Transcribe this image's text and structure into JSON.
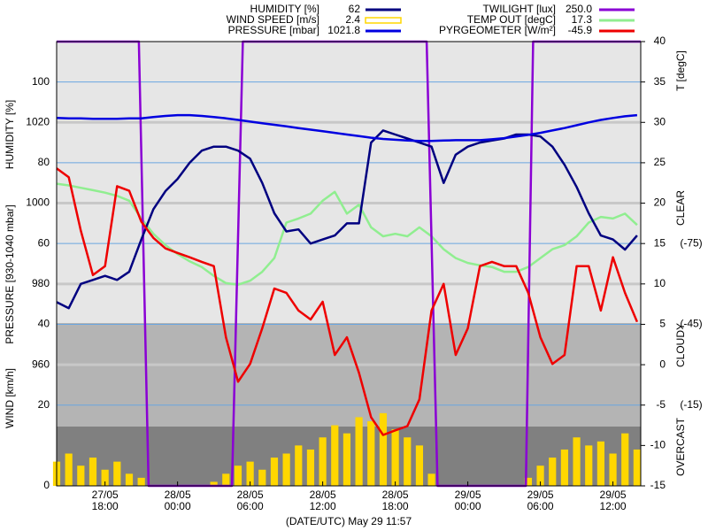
{
  "chart_data": {
    "type": "line",
    "xlabel": "(DATE/UTC) May 29 11:57",
    "ylabel": "HUMIDITY [%]",
    "y3label": "PRESSURE [930-1040 mbar]",
    "wind_label": "WIND [km/h]",
    "y2label": "T [degC]",
    "sky_labels": [
      "CLEAR",
      "CLOUDY",
      "OVERCAST"
    ],
    "xlim": [
      14,
      62.3
    ],
    "xticks": [
      {
        "value": 18,
        "label": "18:00"
      },
      {
        "value": 24,
        "label": "00:00"
      },
      {
        "value": 30,
        "label": "06:00"
      },
      {
        "value": 36,
        "label": "12:00"
      },
      {
        "value": 42,
        "label": "18:00"
      },
      {
        "value": 48,
        "label": "00:00"
      },
      {
        "value": 54,
        "label": "06:00"
      },
      {
        "value": 60,
        "label": "12:00"
      }
    ],
    "xtick_dates": [
      "27/05",
      "28/05",
      "28/05",
      "28/05",
      "28/05",
      "29/05",
      "29/05",
      "29/05"
    ],
    "ylim": [
      0,
      110
    ],
    "yticks": [
      0,
      20,
      40,
      60,
      80,
      100
    ],
    "y3lim": [
      930,
      1040
    ],
    "y3ticks": [
      960,
      980,
      1000,
      1020
    ],
    "y2lim": [
      -15,
      40
    ],
    "y2ticks": [
      -15,
      -10,
      -5,
      0,
      5,
      10,
      15,
      20,
      25,
      30,
      35,
      40
    ],
    "y4lim": [
      15,
      -150
    ],
    "y4ticks": [
      {
        "value": -75,
        "label": "(-75)"
      },
      {
        "value": -45,
        "label": "(-45)"
      },
      {
        "value": -15,
        "label": "(-15)"
      }
    ],
    "y5lim": [
      0,
      250
    ],
    "grid": true,
    "x": [
      14,
      15,
      16,
      17,
      18,
      19,
      20,
      21,
      22,
      23,
      24,
      25,
      26,
      27,
      28,
      29,
      30,
      31,
      32,
      33,
      34,
      35,
      36,
      37,
      38,
      39,
      40,
      41,
      42,
      43,
      44,
      45,
      46,
      47,
      48,
      49,
      50,
      51,
      52,
      53,
      54,
      55,
      56,
      57,
      58,
      59,
      60,
      61,
      62
    ],
    "series": [
      {
        "name": "HUMIDITY [%]",
        "current": "62",
        "color": "#000080",
        "axis": "y",
        "kind": "line",
        "values": [
          45.5,
          44,
          50,
          51,
          52,
          51,
          53,
          61,
          68.5,
          73,
          76,
          80,
          83,
          84,
          84,
          83,
          81,
          75,
          67.5,
          63,
          63.5,
          60,
          61,
          62,
          65,
          65,
          85,
          88,
          87,
          86,
          85,
          84,
          75,
          82,
          84,
          85,
          85.5,
          86,
          87,
          87,
          86.5,
          84,
          79.5,
          74,
          67.5,
          62,
          61,
          58.5,
          62
        ]
      },
      {
        "name": "WIND SPEED [m/s]",
        "current": "2.4",
        "color": "#ffd700",
        "axis": "y",
        "kind": "bar",
        "values": [
          6,
          8,
          5,
          7,
          4,
          6,
          3,
          2,
          0,
          0,
          0,
          0,
          0,
          1,
          3,
          5,
          6,
          4,
          7,
          8,
          10,
          9,
          12,
          15,
          13,
          17,
          16,
          18,
          14,
          12,
          10,
          3,
          0,
          0,
          0,
          0,
          0,
          0,
          0,
          2,
          5,
          7,
          9,
          12,
          10,
          11,
          8,
          13,
          9
        ]
      },
      {
        "name": "PRESSURE [mbar]",
        "current": "1021.8",
        "color": "#0000e0",
        "axis": "y3",
        "kind": "line",
        "values": [
          1021.1,
          1021,
          1021,
          1020.9,
          1020.9,
          1020.9,
          1021,
          1021,
          1021.3,
          1021.6,
          1021.8,
          1021.8,
          1021.6,
          1021.3,
          1021,
          1020.6,
          1020.2,
          1019.8,
          1019.4,
          1019,
          1018.6,
          1018.2,
          1017.8,
          1017.4,
          1017,
          1016.6,
          1016.2,
          1015.9,
          1015.7,
          1015.5,
          1015.4,
          1015.4,
          1015.5,
          1015.6,
          1015.6,
          1015.6,
          1015.8,
          1016.1,
          1016.5,
          1016.9,
          1017.4,
          1018,
          1018.6,
          1019.3,
          1020,
          1020.6,
          1021.1,
          1021.5,
          1021.8
        ]
      },
      {
        "name": "TWILIGHT [lux]",
        "current": "250.0",
        "color": "#8a00d4",
        "axis": "y5",
        "kind": "line",
        "x": [
          14,
          20.8,
          21.6,
          28.5,
          29.4,
          44.6,
          45.5,
          52.8,
          53.4,
          62.3
        ],
        "values": [
          250,
          250,
          0,
          0,
          250,
          250,
          0,
          0,
          250,
          250
        ]
      },
      {
        "name": "TEMP OUT [degC]",
        "current": "17.3",
        "color": "#90ee90",
        "axis": "y2",
        "kind": "line",
        "values": [
          22.4,
          22.2,
          21.9,
          21.6,
          21.3,
          20.9,
          20.3,
          18.1,
          16.2,
          14.8,
          13.7,
          12.8,
          12.1,
          11,
          10.1,
          9.9,
          10.4,
          11.5,
          13.2,
          17.6,
          18.1,
          18.7,
          20.3,
          21.4,
          18.7,
          19.8,
          17,
          15.9,
          16.2,
          15.9,
          17,
          15.9,
          14.3,
          13.2,
          12.6,
          12.3,
          12.1,
          11.5,
          11.5,
          12.1,
          13.2,
          14.3,
          14.8,
          15.9,
          17.6,
          18.3,
          18.1,
          18.7,
          17.3
        ]
      },
      {
        "name": "PYRGEOMETER [W/m²]",
        "current": "-45.9",
        "color": "#ee0000",
        "axis": "y4",
        "kind": "line",
        "values": [
          -102.9,
          -99.6,
          -79.8,
          -63.3,
          -66.6,
          -96.3,
          -94.6,
          -83.1,
          -77.1,
          -73.2,
          -71.5,
          -69.9,
          -68.2,
          -66.6,
          -40.2,
          -23.7,
          -30.3,
          -43.5,
          -58.3,
          -56.7,
          -50.1,
          -46.8,
          -53.4,
          -33.6,
          -40.2,
          -27,
          -10.5,
          -3.9,
          -5.6,
          -7.2,
          -17.1,
          -50.1,
          -60,
          -33.6,
          -43.5,
          -66.6,
          -68.2,
          -66.6,
          -66.6,
          -56.7,
          -40.2,
          -30.3,
          -33.6,
          -66.6,
          -66.6,
          -50.1,
          -69.9,
          -56.7,
          -45.9
        ]
      }
    ]
  }
}
